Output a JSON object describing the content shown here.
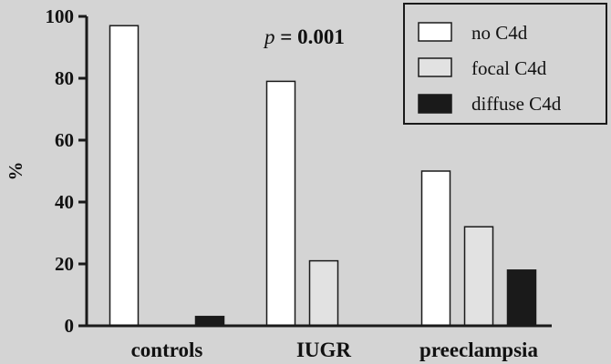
{
  "chart_data": {
    "type": "bar",
    "categories": [
      "controls",
      "IUGR",
      "preeclampsia"
    ],
    "series": [
      {
        "name": "no C4d",
        "values": [
          97,
          79,
          50
        ],
        "color": "#ffffff"
      },
      {
        "name": "focal C4d",
        "values": [
          0,
          21,
          32
        ],
        "color": "#e2e2e2"
      },
      {
        "name": "diffuse C4d",
        "values": [
          3,
          0,
          18
        ],
        "color": "#1a1a1a"
      }
    ],
    "ylabel": "%",
    "ylim": [
      0,
      100
    ],
    "yticks": [
      0,
      20,
      40,
      60,
      80,
      100
    ],
    "legend_position": "top-right",
    "annotation": {
      "p_label": "p",
      "value_text": " = 0.001"
    },
    "grid": false
  }
}
